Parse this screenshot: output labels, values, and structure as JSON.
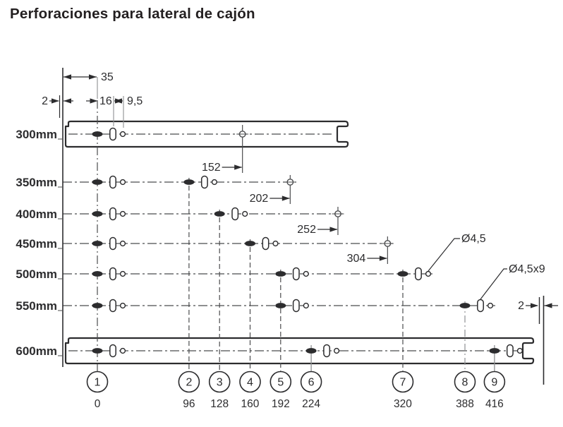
{
  "title": "Perforaciones para lateral de cajón",
  "diagram": {
    "top_dims": {
      "edge_offset": "2",
      "first_hole": "35",
      "hole_to_slot": "16",
      "slot_to_round": "9,5"
    },
    "rows": [
      {
        "label": "300mm",
        "holes_mm": [
          0
        ],
        "dim": {
          "value": "152",
          "mm": 152
        }
      },
      {
        "label": "350mm",
        "holes_mm": [
          0,
          96
        ],
        "dim": {
          "value": "202",
          "mm": 202
        }
      },
      {
        "label": "400mm",
        "holes_mm": [
          0,
          128
        ],
        "dim": {
          "value": "252",
          "mm": 252
        }
      },
      {
        "label": "450mm",
        "holes_mm": [
          0,
          160
        ],
        "dim": {
          "value": "304",
          "mm": 304
        }
      },
      {
        "label": "500mm",
        "holes_mm": [
          0,
          192,
          320
        ],
        "leader": {
          "label": "Ø4,5",
          "target": "round_hole",
          "at_mm": 320
        }
      },
      {
        "label": "550mm",
        "holes_mm": [
          0,
          192,
          388
        ],
        "leader": {
          "label": "Ø4,5x9",
          "target": "slot_hole",
          "at_mm": 388
        },
        "edge_dim": {
          "value": "2"
        }
      },
      {
        "label": "600mm",
        "holes_mm": [
          0,
          224,
          416
        ]
      }
    ],
    "positions": [
      {
        "num": "1",
        "mm": 0,
        "value": "0"
      },
      {
        "num": "2",
        "mm": 96,
        "value": "96"
      },
      {
        "num": "3",
        "mm": 128,
        "value": "128"
      },
      {
        "num": "4",
        "mm": 160,
        "value": "160"
      },
      {
        "num": "5",
        "mm": 192,
        "value": "192"
      },
      {
        "num": "6",
        "mm": 224,
        "value": "224"
      },
      {
        "num": "7",
        "mm": 320,
        "value": "320"
      },
      {
        "num": "8",
        "mm": 388,
        "value": "388"
      },
      {
        "num": "9",
        "mm": 416,
        "value": "416"
      }
    ]
  },
  "colors": {
    "ink": "#2c2c2e",
    "line": "#4b4c4e",
    "light": "#8e9092"
  }
}
